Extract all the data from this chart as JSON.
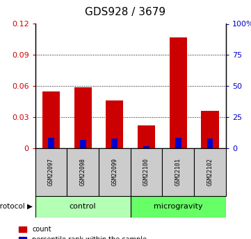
{
  "title": "GDS928 / 3679",
  "samples": [
    "GSM22097",
    "GSM22098",
    "GSM22099",
    "GSM22100",
    "GSM22101",
    "GSM22102"
  ],
  "red_values": [
    0.055,
    0.059,
    0.046,
    0.022,
    0.107,
    0.036
  ],
  "blue_pct": [
    8.5,
    6.5,
    8.0,
    1.5,
    8.5,
    7.5
  ],
  "ylim_left": [
    0,
    0.12
  ],
  "ylim_right": [
    0,
    100
  ],
  "yticks_left": [
    0,
    0.03,
    0.06,
    0.09,
    0.12
  ],
  "yticks_left_labels": [
    "0",
    "0.03",
    "0.06",
    "0.09",
    "0.12"
  ],
  "yticks_right": [
    0,
    25,
    50,
    75,
    100
  ],
  "yticks_right_labels": [
    "0",
    "25",
    "50",
    "75",
    "100%"
  ],
  "bar_width": 0.55,
  "red_color": "#cc0000",
  "blue_color": "#0000cc",
  "control_color": "#b3ffb3",
  "microgravity_color": "#66ff66",
  "sample_bg_color": "#cccccc",
  "title_fontsize": 11
}
